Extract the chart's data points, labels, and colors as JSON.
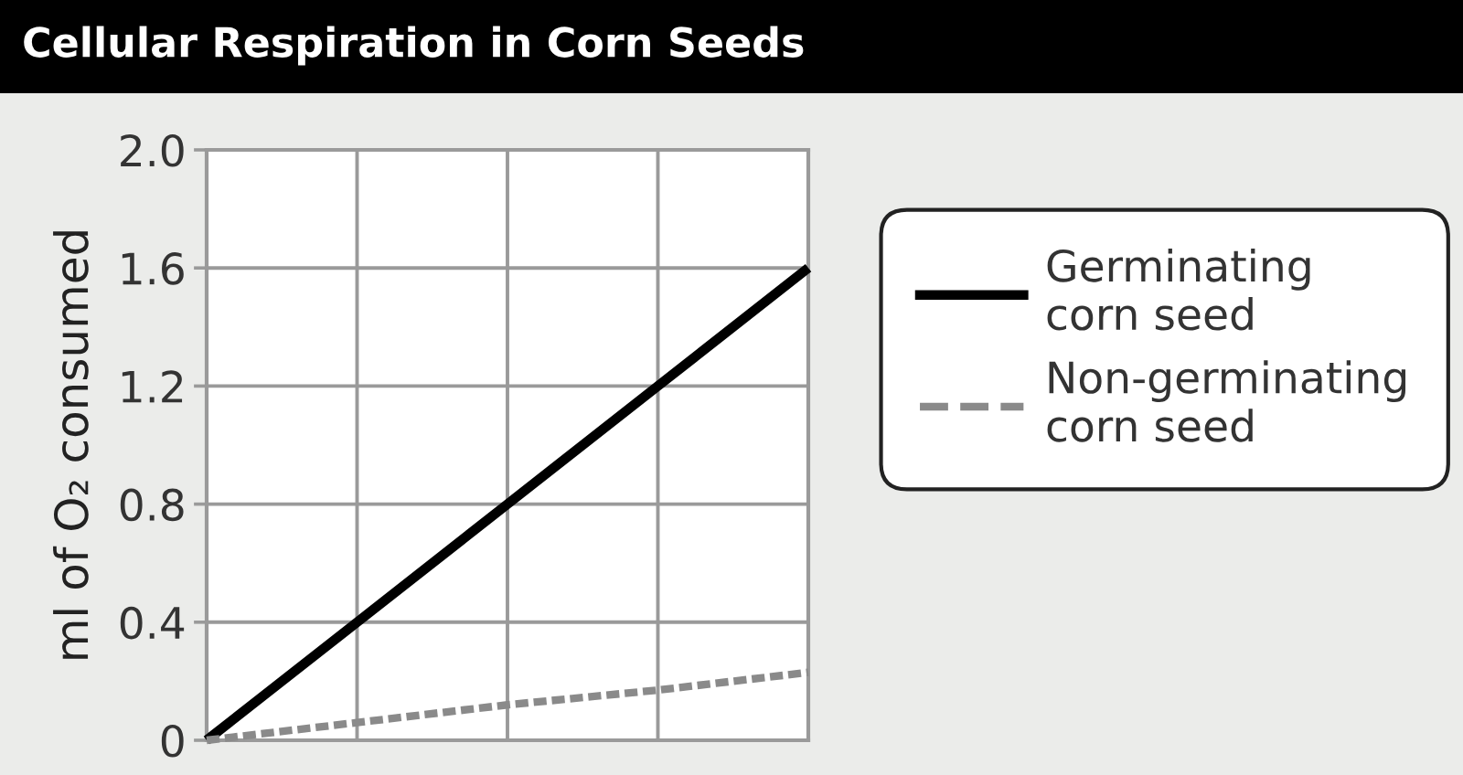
{
  "chart_data": {
    "type": "line",
    "title": "Cellular Respiration in Corn Seeds",
    "ylabel": "ml of O₂ consumed",
    "categories": [
      null,
      null,
      null,
      null,
      null
    ],
    "series": [
      {
        "name": "Germinating\ncorn seed",
        "color": "#000000",
        "line_style": "solid",
        "values": [
          0,
          0.4,
          0.8,
          1.2,
          1.6
        ]
      },
      {
        "name": "Non-germinating\ncorn seed",
        "color": "#8a8a8a",
        "line_style": "dashed",
        "values": [
          0,
          0.06,
          0.12,
          0.17,
          0.23
        ]
      }
    ],
    "ylim": [
      0,
      2
    ],
    "yticks": [
      0,
      0.4,
      0.8,
      1.2,
      1.6,
      {
        "value": 2,
        "label": "2.0"
      }
    ],
    "grid": true,
    "legend": "right",
    "tick_labels": "y"
  }
}
